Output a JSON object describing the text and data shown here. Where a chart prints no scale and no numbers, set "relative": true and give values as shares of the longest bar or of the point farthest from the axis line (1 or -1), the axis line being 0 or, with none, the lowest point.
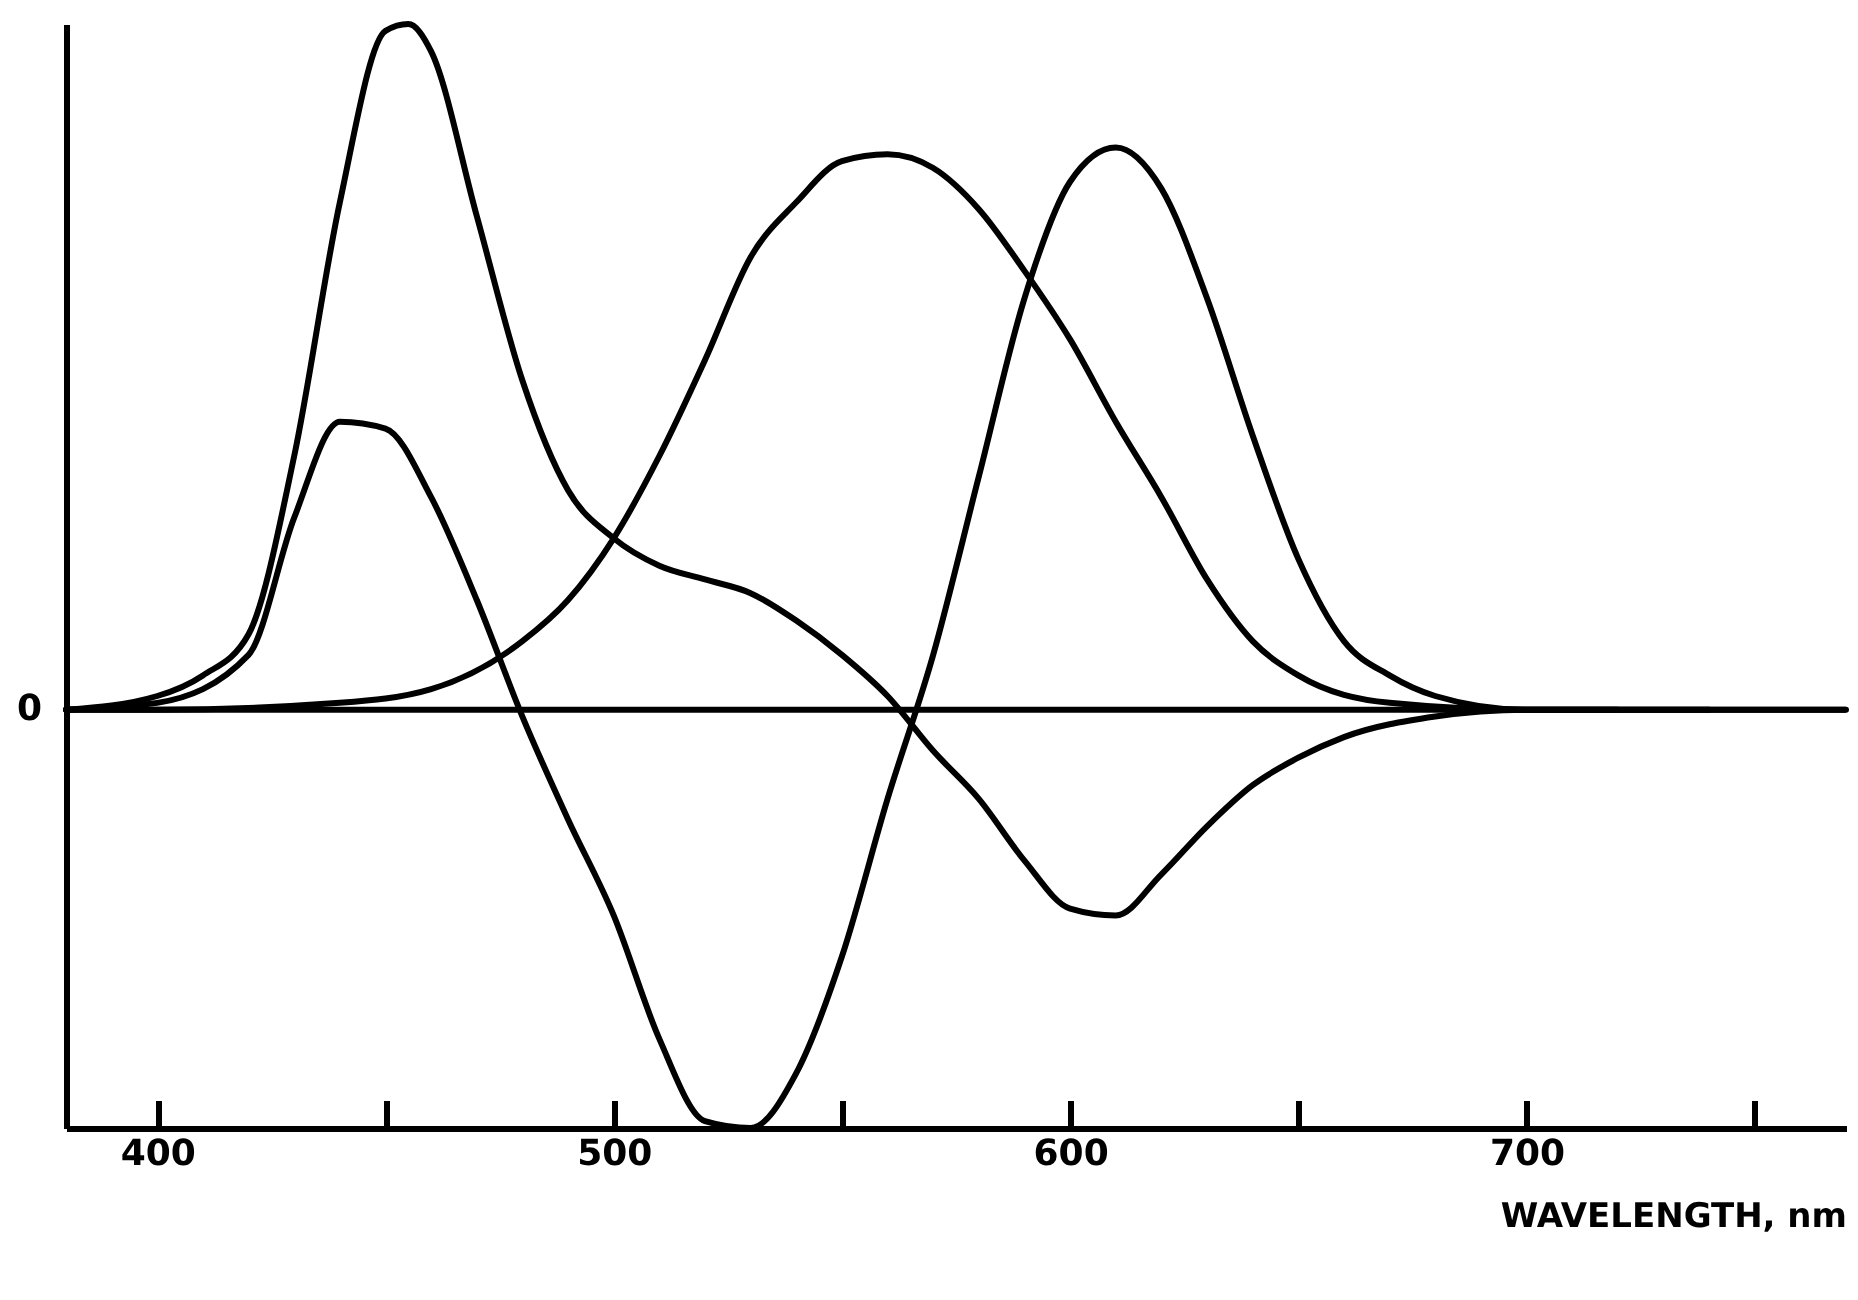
{
  "chart_data": {
    "type": "line",
    "relative": true,
    "xlabel": "WAVELENGTH, nm",
    "xlim": [
      380,
      770
    ],
    "xticks": [
      400,
      {
        "value": 450,
        "label": null
      },
      500,
      {
        "value": 550,
        "label": null
      },
      600,
      {
        "value": 650,
        "label": null
      },
      700,
      {
        "value": 750,
        "label": null
      }
    ],
    "ref_lines": [
      {
        "axis": "y",
        "value": 0,
        "label": "0"
      }
    ],
    "marker": "none",
    "line_style": "solid",
    "series": [
      {
        "color": "#000000",
        "x": [
          380,
          400,
          410,
          420,
          430,
          440,
          450,
          455,
          460,
          470,
          480,
          490,
          500,
          510,
          520,
          530,
          540,
          550,
          560,
          570,
          580,
          590,
          600,
          610,
          620,
          630,
          640,
          650,
          660,
          680,
          700,
          720
        ],
        "values": [
          0,
          0.02,
          0.05,
          0.11,
          0.37,
          0.74,
          0.99,
          1,
          0.96,
          0.72,
          0.48,
          0.32,
          0.25,
          0.21,
          0.19,
          0.17,
          0.13,
          0.08,
          0.02,
          -0.06,
          -0.13,
          -0.22,
          -0.29,
          -0.3,
          -0.24,
          -0.17,
          -0.11,
          -0.07,
          -0.04,
          -0.01,
          0,
          0
        ]
      },
      {
        "color": "#000000",
        "x": [
          380,
          400,
          420,
          430,
          440,
          450,
          460,
          470,
          480,
          490,
          500,
          510,
          520,
          530,
          540,
          550,
          560,
          570,
          580,
          590,
          600,
          610,
          620,
          630,
          640,
          650,
          660,
          670,
          680,
          700,
          740
        ],
        "values": [
          0,
          0.01,
          0.08,
          0.28,
          0.42,
          0.41,
          0.31,
          0.16,
          -0.01,
          -0.16,
          -0.3,
          -0.48,
          -0.6,
          -0.61,
          -0.53,
          -0.36,
          -0.13,
          0.08,
          0.34,
          0.6,
          0.77,
          0.82,
          0.76,
          0.6,
          0.4,
          0.22,
          0.1,
          0.05,
          0.02,
          0,
          0
        ]
      },
      {
        "color": "#000000",
        "x": [
          380,
          400,
          440,
          460,
          480,
          490,
          500,
          510,
          520,
          530,
          540,
          550,
          560,
          570,
          580,
          590,
          600,
          610,
          620,
          630,
          640,
          650,
          670,
          700,
          770
        ],
        "values": [
          0,
          0,
          0.01,
          0.03,
          0.1,
          0.16,
          0.25,
          0.37,
          0.51,
          0.66,
          0.74,
          0.8,
          0.81,
          0.79,
          0.73,
          0.64,
          0.54,
          0.42,
          0.31,
          0.19,
          0.1,
          0.05,
          0.01,
          0,
          0
        ]
      }
    ]
  }
}
